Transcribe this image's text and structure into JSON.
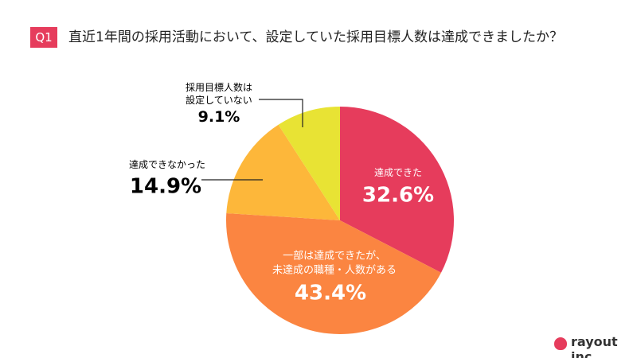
{
  "chart_data": {
    "type": "pie",
    "badge": "Q1",
    "title": "直近1年間の採用活動において、設定していた採用目標人数は達成できましたか？",
    "categories": [
      "達成できた",
      "一部は達成できたが、\n未達成の職種・人数がある",
      "達成できなかった",
      "採用目標人数は\n設定していない"
    ],
    "values": [
      32.6,
      43.4,
      14.9,
      9.1
    ],
    "value_labels": [
      "32.6%",
      "43.4%",
      "14.9%",
      "9.1%"
    ],
    "colors": [
      "#e63c5c",
      "#fb8541",
      "#fdb73a",
      "#e8e334"
    ]
  },
  "brand": "rayout inc."
}
